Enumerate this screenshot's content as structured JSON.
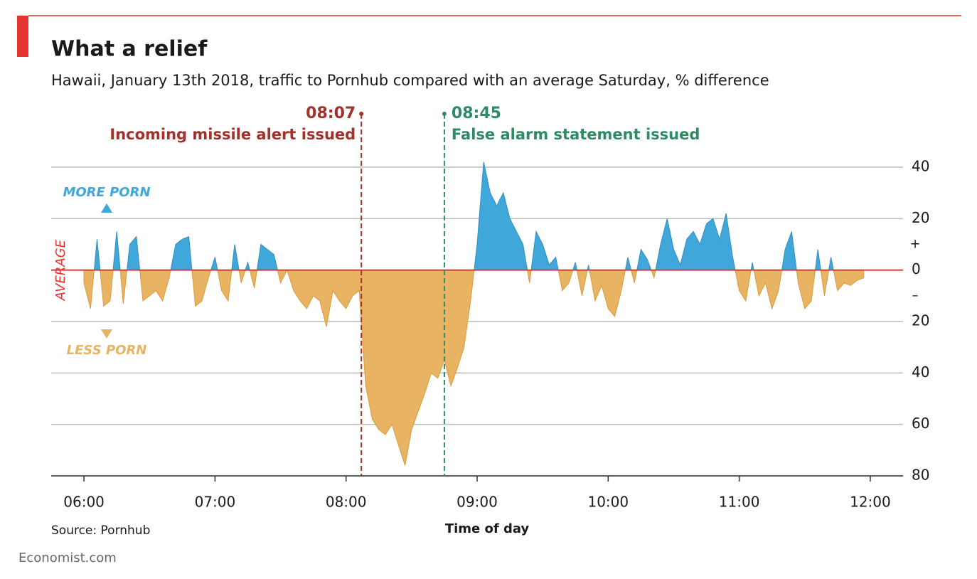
{
  "chart_data": {
    "type": "area",
    "title": "What a relief",
    "subtitle": "Hawaii, January 13th 2018, traffic to Pornhub compared with an average Saturday, % difference",
    "x_label": "Time of day",
    "source": "Source: Pornhub",
    "footer": "Economist.com",
    "labels": {
      "above": "MORE PORN",
      "below": "LESS PORN",
      "baseline": "AVERAGE"
    },
    "colors": {
      "above": "#3fa7d9",
      "below": "#e8b464",
      "baseline": "#e3342f"
    },
    "events": [
      {
        "x": 487,
        "time": "08:07",
        "label": "Incoming missile alert issued",
        "color": "#a3302a",
        "side": "left"
      },
      {
        "x": 525,
        "time": "08:45",
        "label": "False alarm statement issued",
        "color": "#2e8b63",
        "side": "right"
      }
    ],
    "xlim": [
      345,
      735
    ],
    "xticks": [
      {
        "value": 360,
        "label": "06:00"
      },
      {
        "value": 420,
        "label": "07:00"
      },
      {
        "value": 480,
        "label": "08:00"
      },
      {
        "value": 540,
        "label": "09:00"
      },
      {
        "value": 600,
        "label": "10:00"
      },
      {
        "value": 660,
        "label": "11:00"
      },
      {
        "value": 720,
        "label": "12:00"
      }
    ],
    "ylim": [
      -80,
      40
    ],
    "yticks": [
      40,
      20,
      0,
      {
        "value": -20,
        "label": "20"
      },
      {
        "value": -40,
        "label": "40"
      },
      {
        "value": -60,
        "label": "60"
      },
      {
        "value": -80,
        "label": "80"
      }
    ],
    "sign_marks": [
      {
        "value": 10,
        "label": "+"
      },
      {
        "value": -10,
        "label": "–"
      }
    ],
    "grid": true,
    "x": [
      360,
      363,
      366,
      369,
      372,
      375,
      378,
      381,
      384,
      387,
      390,
      393,
      396,
      399,
      402,
      405,
      408,
      411,
      414,
      417,
      420,
      423,
      426,
      429,
      432,
      435,
      438,
      441,
      444,
      447,
      450,
      453,
      456,
      459,
      462,
      465,
      468,
      471,
      474,
      477,
      480,
      483,
      486,
      489,
      492,
      495,
      498,
      501,
      504,
      507,
      510,
      513,
      516,
      519,
      522,
      525,
      528,
      531,
      534,
      537,
      540,
      543,
      546,
      549,
      552,
      555,
      558,
      561,
      564,
      567,
      570,
      573,
      576,
      579,
      582,
      585,
      588,
      591,
      594,
      597,
      600,
      603,
      606,
      609,
      612,
      615,
      618,
      621,
      624,
      627,
      630,
      633,
      636,
      639,
      642,
      645,
      648,
      651,
      654,
      657,
      660,
      663,
      666,
      669,
      672,
      675,
      678,
      681,
      684,
      687,
      690,
      693,
      696,
      699,
      702,
      705,
      708,
      711,
      714,
      717
    ],
    "values": [
      -5,
      -15,
      12,
      -14,
      -12,
      15,
      -13,
      10,
      13,
      -12,
      -10,
      -8,
      -12,
      -3,
      10,
      12,
      13,
      -14,
      -12,
      -3,
      5,
      -8,
      -12,
      10,
      -5,
      3,
      -7,
      10,
      8,
      6,
      -5,
      0,
      -8,
      -12,
      -15,
      -10,
      -12,
      -22,
      -8,
      -12,
      -15,
      -10,
      -8,
      -45,
      -58,
      -62,
      -64,
      -60,
      -68,
      -76,
      -62,
      -55,
      -48,
      -40,
      -42,
      -35,
      -45,
      -38,
      -30,
      -12,
      10,
      42,
      30,
      25,
      30,
      20,
      15,
      10,
      -5,
      15,
      10,
      2,
      5,
      -8,
      -5,
      3,
      -10,
      2,
      -12,
      -6,
      -15,
      -18,
      -8,
      5,
      -5,
      8,
      4,
      -3,
      10,
      20,
      8,
      2,
      12,
      15,
      10,
      18,
      20,
      12,
      22,
      5,
      -8,
      -12,
      3,
      -10,
      -5,
      -15,
      -8,
      8,
      15,
      -5,
      -15,
      -12,
      8,
      -10,
      5,
      -8,
      -5,
      -6,
      -4,
      -3
    ]
  }
}
